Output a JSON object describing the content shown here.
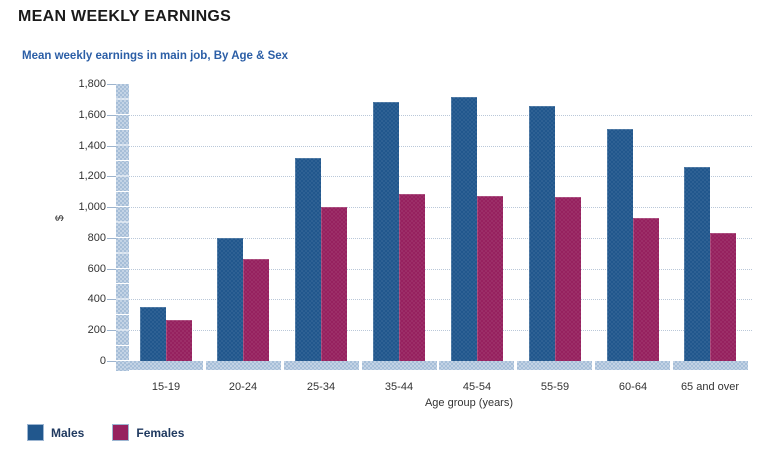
{
  "page": {
    "title": "MEAN WEEKLY EARNINGS"
  },
  "chart_data": {
    "type": "bar",
    "title": "Mean weekly earnings in main job, By Age & Sex",
    "categories": [
      "15-19",
      "20-24",
      "25-34",
      "35-44",
      "45-54",
      "55-59",
      "60-64",
      "65 and over"
    ],
    "series": [
      {
        "name": "Males",
        "color": "#21578D",
        "values": [
          350,
          800,
          1320,
          1685,
          1715,
          1655,
          1505,
          1260
        ]
      },
      {
        "name": "Females",
        "color": "#96215F",
        "values": [
          265,
          665,
          1000,
          1085,
          1075,
          1065,
          930,
          830
        ]
      }
    ],
    "xlabel": "Age group (years)",
    "ylabel": "$",
    "ylim": [
      0,
      1800
    ],
    "ytick_step": 200,
    "grid": "dotted-horizontal",
    "legend_position": "bottom-left",
    "colors": {
      "title_text": "#1a1a1a",
      "subtitle_text": "#2b5ea6",
      "axis_text": "#333333",
      "legend_text": "#203a60",
      "axis_band": "#c3d3e5",
      "gridline": "#bac8d9"
    }
  }
}
